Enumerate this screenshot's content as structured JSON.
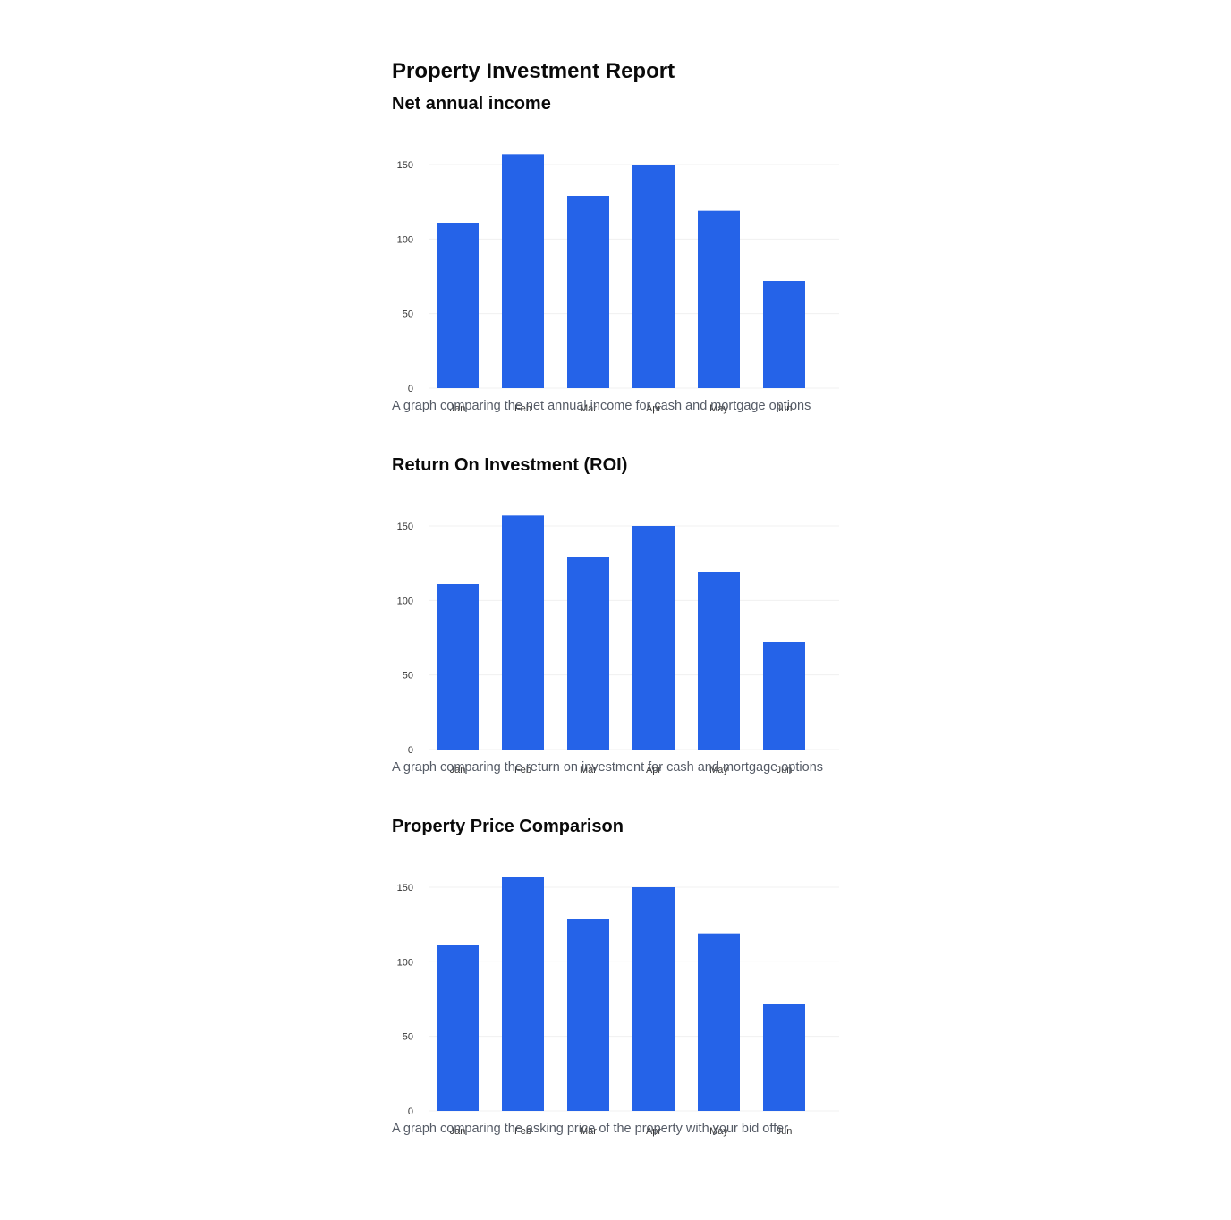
{
  "report": {
    "title": "Property Investment Report"
  },
  "colors": {
    "bar": "#2563e8",
    "grid": "#f0f0f0"
  },
  "chart_data": [
    {
      "type": "bar",
      "title": "Net annual income",
      "caption": "A graph comparing the net annual income for cash and mortgage options",
      "categories": [
        "Jan",
        "Feb",
        "Mar",
        "Apr",
        "May",
        "Jun"
      ],
      "values": [
        111,
        157,
        129,
        150,
        119,
        72
      ],
      "yticks": [
        0,
        50,
        100,
        150
      ],
      "ylim": [
        0,
        150
      ],
      "grid": true
    },
    {
      "type": "bar",
      "title": "Return On Investment (ROI)",
      "caption": "A graph comparing the return on investment for cash and mortgage options",
      "categories": [
        "Jan",
        "Feb",
        "Mar",
        "Apr",
        "May",
        "Jun"
      ],
      "values": [
        111,
        157,
        129,
        150,
        119,
        72
      ],
      "yticks": [
        0,
        50,
        100,
        150
      ],
      "ylim": [
        0,
        150
      ],
      "grid": true
    },
    {
      "type": "bar",
      "title": "Property Price Comparison",
      "caption": "A graph comparing the asking price of the property with your bid offer",
      "categories": [
        "Jan",
        "Feb",
        "Mar",
        "Apr",
        "May",
        "Jun"
      ],
      "values": [
        111,
        157,
        129,
        150,
        119,
        72
      ],
      "yticks": [
        0,
        50,
        100,
        150
      ],
      "ylim": [
        0,
        150
      ],
      "grid": true
    }
  ]
}
